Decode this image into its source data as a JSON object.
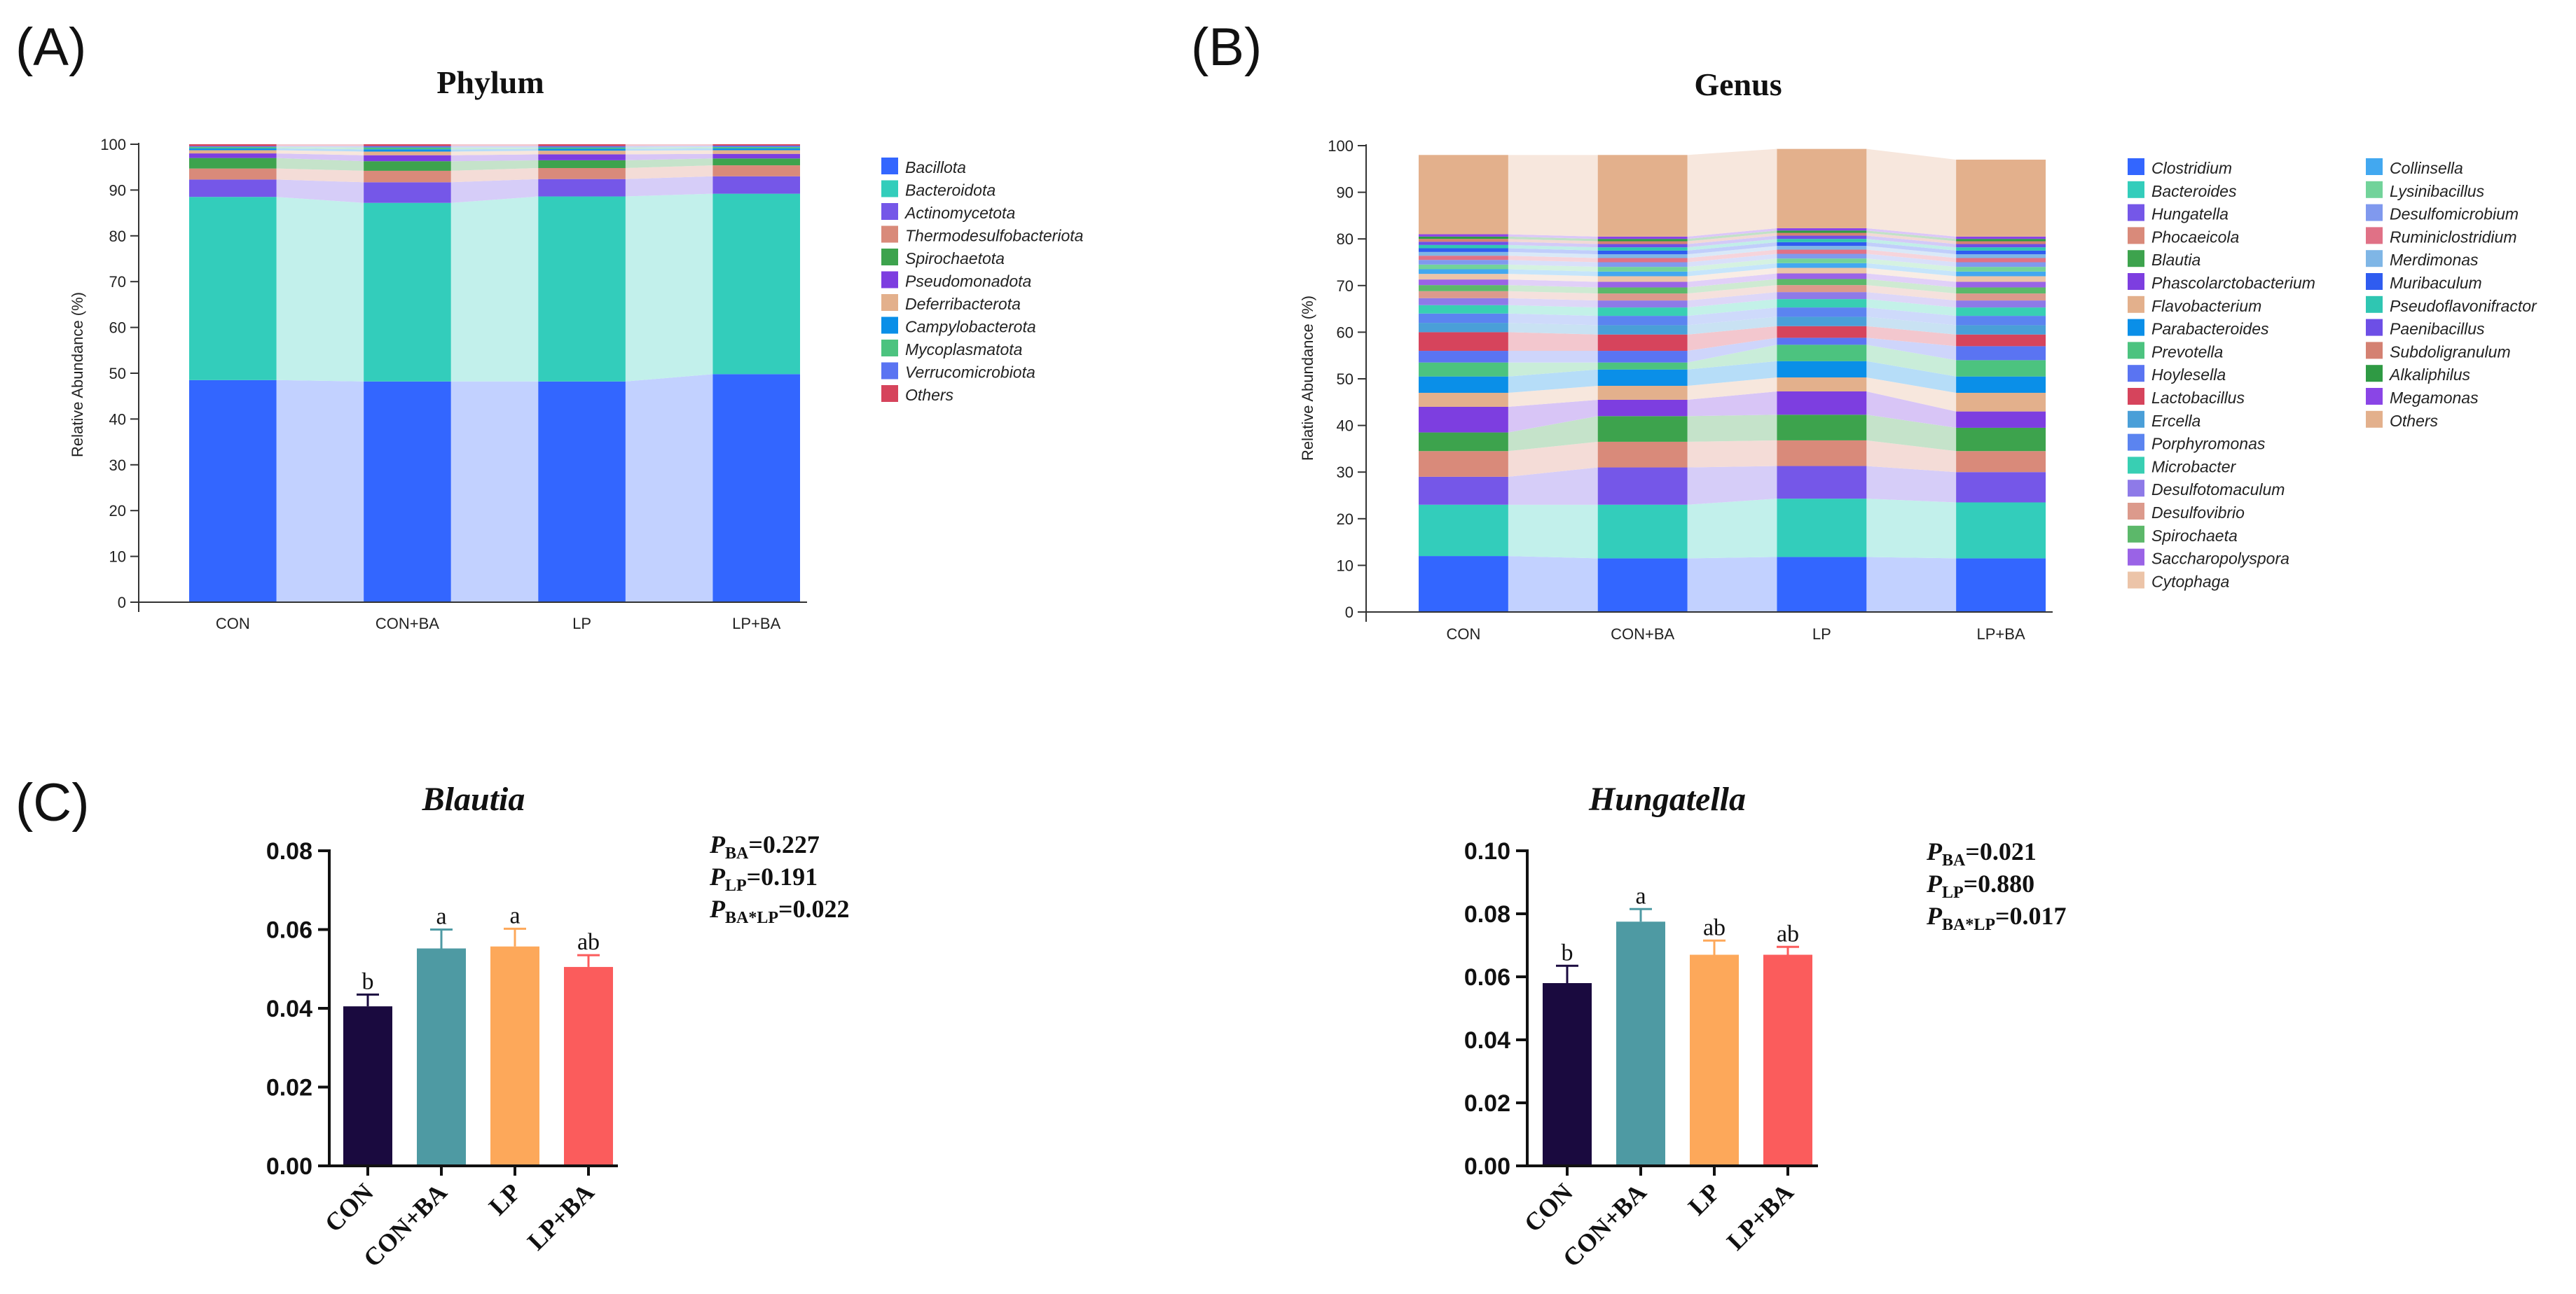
{
  "panels": {
    "A": {
      "label": "(A)"
    },
    "B": {
      "label": "(B)"
    },
    "C": {
      "label": "(C)"
    }
  },
  "chart_data": [
    {
      "id": "phylum",
      "type": "bar",
      "stacked": true,
      "title": "Phylum",
      "xlabel": "",
      "ylabel": "Relative Abundance (%)",
      "ylim": [
        0,
        100
      ],
      "yticks": [
        "0",
        "10",
        "20",
        "30",
        "40",
        "50",
        "60",
        "70",
        "80",
        "90",
        "100"
      ],
      "categories": [
        "CON",
        "CON+BA",
        "LP",
        "LP+BA"
      ],
      "legend_position": "right",
      "series": [
        {
          "name": "Bacillota",
          "color": "#3366ff",
          "values": [
            48.5,
            48.2,
            48.2,
            49.8
          ]
        },
        {
          "name": "Bacteroidota",
          "color": "#33cdbb",
          "values": [
            40.0,
            39.0,
            40.4,
            39.4
          ]
        },
        {
          "name": "Actinomycetota",
          "color": "#7557e8",
          "values": [
            3.8,
            4.5,
            3.8,
            3.8
          ]
        },
        {
          "name": "Thermodesulfobacteriota",
          "color": "#d98a7a",
          "values": [
            2.4,
            2.5,
            2.4,
            2.4
          ]
        },
        {
          "name": "Spirochaetota",
          "color": "#3da34d",
          "values": [
            2.3,
            2.1,
            1.7,
            1.5
          ]
        },
        {
          "name": "Pseudomonadota",
          "color": "#7d3ee0",
          "values": [
            1.0,
            1.3,
            1.3,
            1.0
          ]
        },
        {
          "name": "Deferribacterota",
          "color": "#e3b08c",
          "values": [
            0.7,
            0.8,
            0.8,
            0.8
          ]
        },
        {
          "name": "Campylobacterota",
          "color": "#0a8fe8",
          "values": [
            0.4,
            0.5,
            0.4,
            0.4
          ]
        },
        {
          "name": "Mycoplasmatota",
          "color": "#4cc37f",
          "values": [
            0.3,
            0.4,
            0.3,
            0.3
          ]
        },
        {
          "name": "Verrucomicrobiota",
          "color": "#5a74f2",
          "values": [
            0.2,
            0.3,
            0.3,
            0.3
          ]
        },
        {
          "name": "Others",
          "color": "#d6445c",
          "values": [
            0.4,
            0.4,
            0.4,
            0.3
          ]
        }
      ]
    },
    {
      "id": "genus",
      "type": "bar",
      "stacked": true,
      "title": "Genus",
      "xlabel": "",
      "ylabel": "Relative Abundance (%)",
      "ylim": [
        0,
        100
      ],
      "yticks": [
        "0",
        "10",
        "20",
        "30",
        "40",
        "50",
        "60",
        "70",
        "80",
        "90",
        "100"
      ],
      "categories": [
        "CON",
        "CON+BA",
        "LP",
        "LP+BA"
      ],
      "legend_position": "right",
      "series": [
        {
          "name": "Clostridium",
          "color": "#3366ff",
          "values": [
            12.0,
            11.5,
            11.8,
            11.5
          ]
        },
        {
          "name": "Bacteroides",
          "color": "#33cdbb",
          "values": [
            11.0,
            11.5,
            12.5,
            12.0
          ]
        },
        {
          "name": "Hungatella",
          "color": "#7557e8",
          "values": [
            6.0,
            8.0,
            7.0,
            6.5
          ]
        },
        {
          "name": "Phocaeicola",
          "color": "#d98a7a",
          "values": [
            5.5,
            5.5,
            5.5,
            4.5
          ]
        },
        {
          "name": "Blautia",
          "color": "#3da34d",
          "values": [
            4.0,
            5.5,
            5.5,
            5.0
          ]
        },
        {
          "name": "Phascolarctobacterium",
          "color": "#7d3ee0",
          "values": [
            5.5,
            3.5,
            5.0,
            3.5
          ]
        },
        {
          "name": "Flavobacterium",
          "color": "#e3b08c",
          "values": [
            3.0,
            3.0,
            3.0,
            4.0
          ]
        },
        {
          "name": "Parabacteroides",
          "color": "#0a8fe8",
          "values": [
            3.5,
            3.5,
            3.5,
            3.5
          ]
        },
        {
          "name": "Prevotella",
          "color": "#4cc37f",
          "values": [
            3.0,
            1.5,
            3.5,
            3.5
          ]
        },
        {
          "name": "Hoylesella",
          "color": "#5a74f2",
          "values": [
            2.5,
            2.5,
            1.5,
            3.0
          ]
        },
        {
          "name": "Lactobacillus",
          "color": "#d6445c",
          "values": [
            4.0,
            3.5,
            2.5,
            2.5
          ]
        },
        {
          "name": "Ercella",
          "color": "#4a9fd8",
          "values": [
            2.0,
            2.0,
            2.0,
            2.0
          ]
        },
        {
          "name": "Porphyromonas",
          "color": "#5b84f0",
          "values": [
            2.0,
            2.0,
            2.0,
            2.0
          ]
        },
        {
          "name": "Microbacter",
          "color": "#38cfb3",
          "values": [
            1.8,
            1.8,
            1.8,
            1.8
          ]
        },
        {
          "name": "Desulfotomaculum",
          "color": "#8e7ae8",
          "values": [
            1.5,
            1.5,
            1.5,
            1.5
          ]
        },
        {
          "name": "Desulfovibrio",
          "color": "#dc9a8c",
          "values": [
            1.5,
            1.5,
            1.5,
            1.5
          ]
        },
        {
          "name": "Spirochaeta",
          "color": "#5cb86a",
          "values": [
            1.3,
            1.3,
            1.3,
            1.3
          ]
        },
        {
          "name": "Saccharopolyspora",
          "color": "#9a63e6",
          "values": [
            1.2,
            1.2,
            1.2,
            1.2
          ]
        },
        {
          "name": "Cytophaga",
          "color": "#ecc4a8",
          "values": [
            1.2,
            1.2,
            1.2,
            1.2
          ]
        },
        {
          "name": "Collinsella",
          "color": "#42a8f0",
          "values": [
            1.0,
            1.0,
            1.0,
            1.0
          ]
        },
        {
          "name": "Lysinibacillus",
          "color": "#72d39a",
          "values": [
            1.0,
            1.0,
            1.0,
            1.0
          ]
        },
        {
          "name": "Desulfomicrobium",
          "color": "#8099ee",
          "values": [
            1.0,
            1.0,
            1.0,
            1.0
          ]
        },
        {
          "name": "Ruminiclostridium",
          "color": "#e07186",
          "values": [
            0.9,
            0.9,
            0.9,
            0.9
          ]
        },
        {
          "name": "Merdimonas",
          "color": "#7fb6e6",
          "values": [
            0.8,
            0.8,
            0.8,
            0.8
          ]
        },
        {
          "name": "Muribaculum",
          "color": "#2f5cf0",
          "values": [
            0.8,
            0.8,
            0.8,
            0.8
          ]
        },
        {
          "name": "Pseudoflavonifractor",
          "color": "#2fc6b2",
          "values": [
            0.7,
            0.7,
            0.7,
            0.7
          ]
        },
        {
          "name": "Paenibacillus",
          "color": "#6d4fe6",
          "values": [
            0.7,
            0.7,
            0.7,
            0.7
          ]
        },
        {
          "name": "Subdoligranulum",
          "color": "#d48172",
          "values": [
            0.6,
            0.6,
            0.6,
            0.6
          ]
        },
        {
          "name": "Alkaliphilus",
          "color": "#2f9a44",
          "values": [
            0.5,
            0.5,
            0.5,
            0.5
          ]
        },
        {
          "name": "Megamonas",
          "color": "#8a45e6",
          "values": [
            0.5,
            0.5,
            0.5,
            0.5
          ]
        },
        {
          "name": "Others",
          "color": "#e3b08c",
          "values": [
            17.0,
            17.5,
            17.0,
            16.5
          ]
        }
      ]
    },
    {
      "id": "blautia",
      "type": "bar",
      "title": "Blautia",
      "xlabel": "",
      "ylabel": "",
      "ylim": [
        0,
        0.08
      ],
      "yticks": [
        "0.00",
        "0.02",
        "0.04",
        "0.06",
        "0.08"
      ],
      "categories": [
        "CON",
        "CON+BA",
        "LP",
        "LP+BA"
      ],
      "values": [
        0.0405,
        0.0552,
        0.0557,
        0.0505
      ],
      "errors": [
        0.003,
        0.0048,
        0.0045,
        0.003
      ],
      "letters": [
        "b",
        "a",
        "a",
        "ab"
      ],
      "colors": [
        "#1a0a3f",
        "#4e9aa3",
        "#fda85a",
        "#fb5c5c"
      ],
      "stats": [
        {
          "p": "P",
          "sub": "BA",
          "value": "=0.227"
        },
        {
          "p": "P",
          "sub": "LP",
          "value": "=0.191"
        },
        {
          "p": "P",
          "sub": "BA*LP",
          "value": "=0.022"
        }
      ]
    },
    {
      "id": "hungatella",
      "type": "bar",
      "title": "Hungatella",
      "xlabel": "",
      "ylabel": "",
      "ylim": [
        0,
        0.1
      ],
      "yticks": [
        "0.00",
        "0.02",
        "0.04",
        "0.06",
        "0.08",
        "0.10"
      ],
      "categories": [
        "CON",
        "CON+BA",
        "LP",
        "LP+BA"
      ],
      "values": [
        0.058,
        0.0775,
        0.067,
        0.067
      ],
      "errors": [
        0.0055,
        0.004,
        0.0045,
        0.0025
      ],
      "letters": [
        "b",
        "a",
        "ab",
        "ab"
      ],
      "colors": [
        "#1a0a3f",
        "#4e9aa3",
        "#fda85a",
        "#fb5c5c"
      ],
      "stats": [
        {
          "p": "P",
          "sub": "BA",
          "value": "=0.021"
        },
        {
          "p": "P",
          "sub": "LP",
          "value": "=0.880"
        },
        {
          "p": "P",
          "sub": "BA*LP",
          "value": "=0.017"
        }
      ]
    }
  ]
}
